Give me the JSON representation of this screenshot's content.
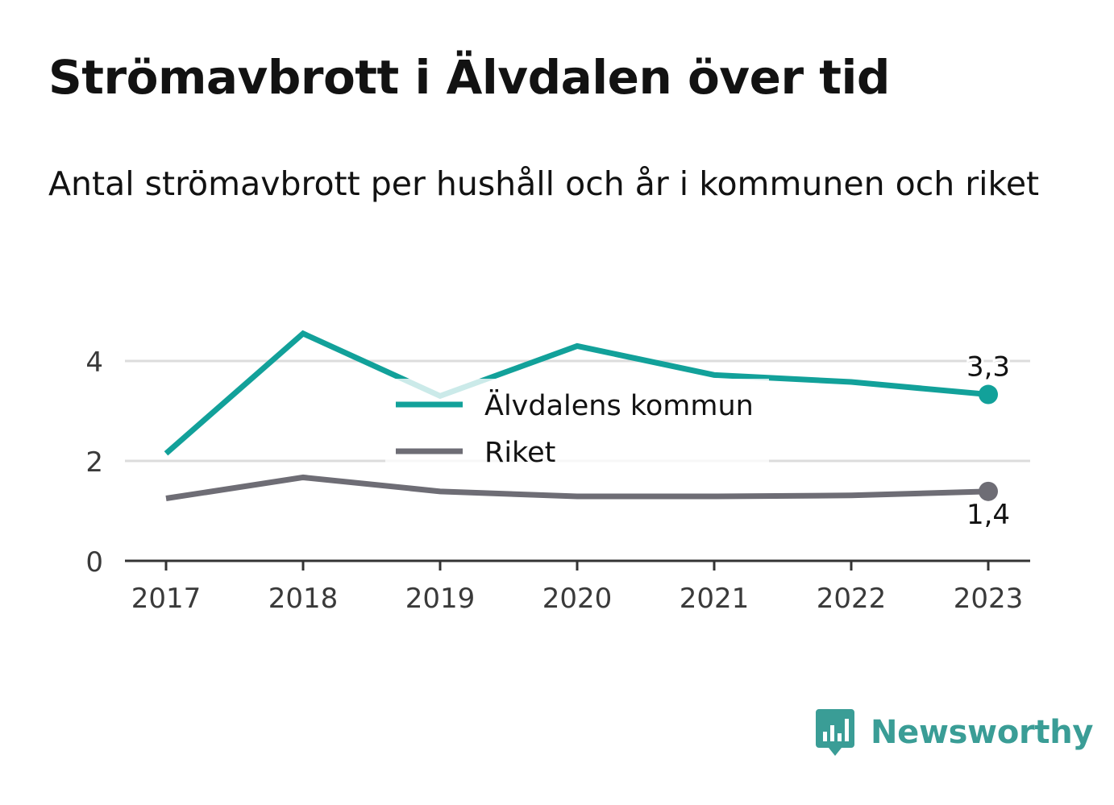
{
  "header": {
    "title": "Strömavbrott i Älvdalen över tid",
    "subtitle": "Antal strömavbrott per hushåll och år i kommunen och riket"
  },
  "chart_data": {
    "type": "line",
    "x": [
      "2017",
      "2018",
      "2019",
      "2020",
      "2021",
      "2022",
      "2023"
    ],
    "ylim": [
      0,
      4.6
    ],
    "yticks": [
      0,
      2,
      4
    ],
    "grid": true,
    "legend_position": "center",
    "series": [
      {
        "name": "Älvdalens kommun",
        "color": "#12a19a",
        "values": [
          2.15,
          4.55,
          3.3,
          4.3,
          3.72,
          3.58,
          3.33
        ],
        "end_label": "3,3"
      },
      {
        "name": "Riket",
        "color": "#6e6d75",
        "values": [
          1.25,
          1.67,
          1.39,
          1.29,
          1.29,
          1.31,
          1.39
        ],
        "end_label": "1,4"
      }
    ]
  },
  "brand": {
    "name": "Newsworthy",
    "color": "#3a9d96"
  }
}
